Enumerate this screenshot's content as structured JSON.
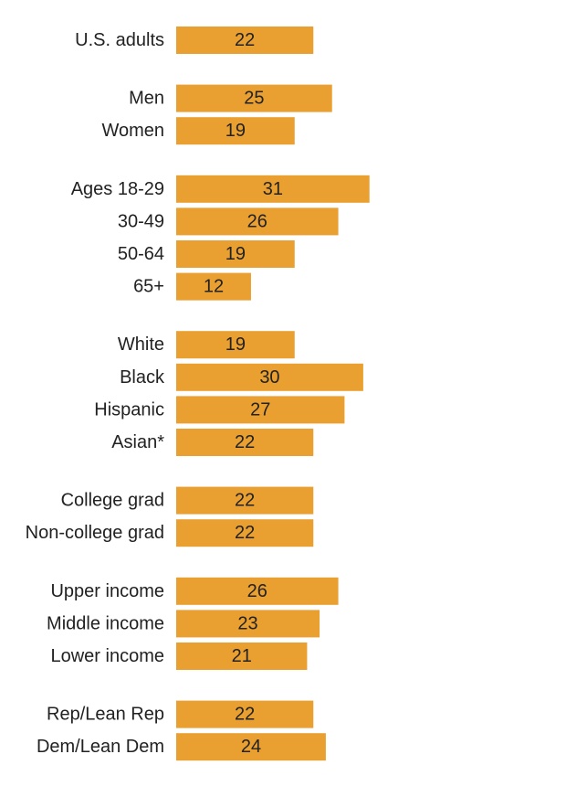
{
  "chart_data": {
    "type": "bar",
    "orientation": "horizontal",
    "title": "",
    "xlabel": "",
    "ylabel": "",
    "xlim": [
      0,
      35
    ],
    "grid": false,
    "bar_color": "#EAA030",
    "groups": [
      {
        "categories": [
          "U.S. adults"
        ],
        "values": [
          22
        ]
      },
      {
        "categories": [
          "Men",
          "Women"
        ],
        "values": [
          25,
          19
        ]
      },
      {
        "categories": [
          "Ages 18-29",
          "30-49",
          "50-64",
          "65+"
        ],
        "values": [
          31,
          26,
          19,
          12
        ]
      },
      {
        "categories": [
          "White",
          "Black",
          "Hispanic",
          "Asian*"
        ],
        "values": [
          19,
          30,
          27,
          22
        ]
      },
      {
        "categories": [
          "College grad",
          "Non-college grad"
        ],
        "values": [
          22,
          22
        ]
      },
      {
        "categories": [
          "Upper income",
          "Middle income",
          "Lower income"
        ],
        "values": [
          26,
          23,
          21
        ]
      },
      {
        "categories": [
          "Rep/Lean Rep",
          "Dem/Lean Dem"
        ],
        "values": [
          22,
          24
        ]
      }
    ]
  }
}
